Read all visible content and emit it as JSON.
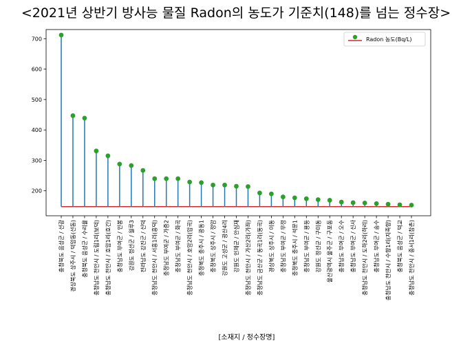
{
  "chart_data": {
    "type": "stem",
    "title": "<2021년 상반기 방사능 물질 Radon의 농도가 기준치(148)를 넘는 정수장>",
    "xlabel": "[소재지 / 정수장명]",
    "ylabel": "",
    "baseline": 148,
    "ylim": [
      118,
      730
    ],
    "yticks": [
      200,
      300,
      400,
      500,
      600,
      700
    ],
    "legend": {
      "label": "Radon 농도(Bq/L)",
      "position": "top-right"
    },
    "colors": {
      "stem": "#1f77b4",
      "marker": "#2ca02c",
      "baseline": "#d62728"
    },
    "categories": [
      "충청북도 음성군 / 선광",
      "경상북도 상주시 / 덕암동(선동)",
      "충청북도 음성군 / 수리율",
      "충청남도 천안시 / 도림1리(보덕)",
      "충청남도 천안시 / 호암1리(호간)",
      "충청남도 부여군 / 인봉",
      "강원도 정선군 / 월루3",
      "전라남도 강진군 / 신덕",
      "충청남도 천안시 / 서흥1리(흥덕)",
      "충청남도 부여군 / 가증2",
      "충청남도 부여군 / 화곡",
      "충청남도 천안시 / 호암2리(압곡)",
      "충청북도 충주시 / 광동1",
      "충청북도 상주시 / 정암",
      "강원도 고성군 / 광산4리",
      "강원도 인제군 / 안심재",
      "충청남도 천안시 / 가산2리(가좌)",
      "충청남도 금산군 / 동곡1리(동곡)",
      "경상북도 상주시 / 이동",
      "충청남도 부여군 / 무정",
      "충청북도 충주시 / 석문1",
      "충청남도 부여군 / 용둥",
      "강원도 정선군 / 구미동",
      "울산광역시 울주군 / 구포동",
      "충청남도 부여군 / 오수",
      "충청남도 부여군 / 신사",
      "충청남도 천안시 / 도하2리(하리)",
      "충청남도 부여군 / 송수",
      "충청남도 천안시 / 수향1리(지족향)",
      "충청북도 음성군 / 덕교",
      "충청남도 천안시 / 중서1리(참촌)"
    ],
    "values": [
      712,
      447,
      439,
      331,
      315,
      288,
      283,
      267,
      240,
      240,
      240,
      229,
      227,
      219,
      219,
      215,
      214,
      193,
      190,
      180,
      177,
      174,
      171,
      169,
      163,
      161,
      160,
      158,
      156,
      154,
      153
    ]
  }
}
